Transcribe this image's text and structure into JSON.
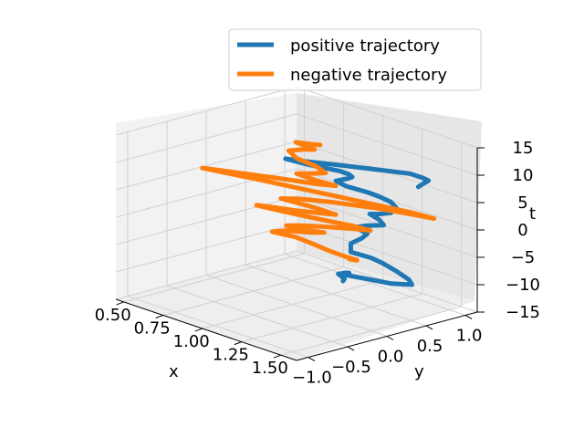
{
  "chart_data": {
    "type": "line3d",
    "title": "",
    "x_label": "x",
    "y_label": "y",
    "z_label": "t",
    "x_ticks": [
      "0.50",
      "0.75",
      "1.00",
      "1.25",
      "1.50"
    ],
    "y_ticks": [
      "−1.0",
      "−0.5",
      "0.0",
      "0.5",
      "1.0"
    ],
    "z_ticks": [
      "15",
      "10",
      "5",
      "0",
      "−5",
      "−10",
      "−15"
    ],
    "xlim": [
      0.45,
      1.6
    ],
    "ylim": [
      -1.15,
      1.15
    ],
    "zlim": [
      -15,
      15
    ],
    "grid": true,
    "legend": {
      "position": "top-right",
      "entries": [
        "positive trajectory",
        "negative trajectory"
      ]
    },
    "series": [
      {
        "name": "positive trajectory",
        "color": "#1f77b4",
        "points": [
          [
            1.5,
            0.6,
            9.0
          ],
          [
            1.55,
            0.58,
            10.3
          ],
          [
            1.59,
            0.55,
            11.2
          ],
          [
            1.58,
            0.5,
            11.8
          ],
          [
            1.52,
            0.45,
            12.2
          ],
          [
            1.4,
            0.3,
            12.3
          ],
          [
            1.22,
            0.15,
            12.0
          ],
          [
            1.05,
            0.0,
            11.7
          ],
          [
            0.98,
            -0.05,
            11.6
          ],
          [
            1.1,
            0.0,
            11.5
          ],
          [
            1.25,
            0.1,
            11.4
          ],
          [
            1.3,
            0.12,
            11.2
          ],
          [
            1.32,
            0.12,
            10.9
          ],
          [
            1.3,
            0.1,
            10.5
          ],
          [
            1.25,
            0.05,
            9.8
          ],
          [
            1.3,
            0.08,
            9.2
          ],
          [
            1.4,
            0.15,
            8.8
          ],
          [
            1.45,
            0.2,
            8.3
          ],
          [
            1.5,
            0.25,
            7.6
          ],
          [
            1.52,
            0.28,
            6.6
          ],
          [
            1.5,
            0.25,
            5.6
          ],
          [
            1.45,
            0.2,
            5.1
          ],
          [
            1.4,
            0.18,
            4.7
          ],
          [
            1.45,
            0.2,
            4.1
          ],
          [
            1.47,
            0.22,
            3.2
          ],
          [
            1.4,
            0.15,
            2.7
          ],
          [
            1.35,
            0.1,
            2.1
          ],
          [
            1.4,
            0.15,
            1.2
          ],
          [
            1.38,
            0.12,
            0.3
          ],
          [
            1.33,
            0.08,
            -1.0
          ],
          [
            1.32,
            0.1,
            -2.7
          ],
          [
            1.4,
            0.2,
            -3.4
          ],
          [
            1.45,
            0.25,
            -4.1
          ],
          [
            1.5,
            0.32,
            -5.3
          ],
          [
            1.55,
            0.38,
            -6.6
          ],
          [
            1.56,
            0.4,
            -7.5
          ],
          [
            1.48,
            0.3,
            -7.7
          ],
          [
            1.35,
            0.2,
            -7.6
          ],
          [
            1.25,
            0.1,
            -7.4
          ],
          [
            1.28,
            0.1,
            -6.9
          ],
          [
            1.3,
            0.12,
            -6.8
          ],
          [
            1.25,
            0.08,
            -7.3
          ],
          [
            1.28,
            0.1,
            -8.0
          ],
          [
            1.27,
            0.1,
            -8.5
          ]
        ]
      },
      {
        "name": "negative trajectory",
        "color": "#ff7f0e",
        "points": [
          [
            1.05,
            0.62,
            -8.6
          ],
          [
            1.1,
            0.6,
            -8.3
          ],
          [
            1.12,
            0.58,
            -8.0
          ],
          [
            1.06,
            0.55,
            -7.8
          ],
          [
            0.98,
            0.5,
            -7.3
          ],
          [
            0.9,
            0.45,
            -6.6
          ],
          [
            0.82,
            0.4,
            -6.0
          ],
          [
            0.72,
            0.3,
            -5.6
          ],
          [
            0.78,
            0.35,
            -5.0
          ],
          [
            0.9,
            0.45,
            -4.6
          ],
          [
            0.95,
            0.5,
            -4.3
          ],
          [
            0.88,
            0.4,
            -4.1
          ],
          [
            0.8,
            0.32,
            -3.8
          ],
          [
            0.85,
            0.35,
            -3.4
          ],
          [
            0.92,
            0.4,
            -3.0
          ],
          [
            1.0,
            0.45,
            -2.6
          ],
          [
            1.12,
            0.52,
            -2.0
          ],
          [
            1.22,
            0.55,
            -1.5
          ],
          [
            1.15,
            0.45,
            -0.9
          ],
          [
            1.0,
            0.32,
            -0.6
          ],
          [
            0.85,
            0.2,
            -0.3
          ],
          [
            0.72,
            0.1,
            0.0
          ],
          [
            0.78,
            0.12,
            0.3
          ],
          [
            0.92,
            0.2,
            0.6
          ],
          [
            1.1,
            0.35,
            1.0
          ],
          [
            1.0,
            0.28,
            1.6
          ],
          [
            0.85,
            0.15,
            2.3
          ],
          [
            0.95,
            0.2,
            3.0
          ],
          [
            1.1,
            0.3,
            3.5
          ],
          [
            1.3,
            0.45,
            3.8
          ],
          [
            1.48,
            0.55,
            4.0
          ],
          [
            1.6,
            0.6,
            4.2
          ],
          [
            1.5,
            0.52,
            4.6
          ],
          [
            1.3,
            0.35,
            5.1
          ],
          [
            1.05,
            0.15,
            5.6
          ],
          [
            0.8,
            -0.05,
            6.1
          ],
          [
            0.62,
            -0.2,
            6.4
          ],
          [
            0.55,
            -0.25,
            6.5
          ],
          [
            0.7,
            -0.15,
            6.8
          ],
          [
            0.9,
            0.0,
            7.1
          ],
          [
            1.1,
            0.1,
            7.6
          ],
          [
            1.2,
            0.15,
            8.0
          ],
          [
            1.1,
            0.08,
            8.4
          ],
          [
            1.0,
            0.05,
            8.7
          ],
          [
            1.08,
            0.1,
            9.3
          ],
          [
            1.15,
            0.12,
            10.0
          ],
          [
            1.1,
            0.1,
            10.8
          ],
          [
            1.0,
            0.05,
            11.5
          ],
          [
            0.95,
            0.05,
            12.4
          ],
          [
            1.02,
            0.1,
            13.1
          ],
          [
            1.08,
            0.12,
            13.6
          ],
          [
            1.05,
            0.1,
            13.9
          ],
          [
            0.98,
            0.08,
            14.1
          ],
          [
            1.05,
            0.12,
            14.3
          ],
          [
            1.1,
            0.15,
            14.5
          ]
        ]
      }
    ]
  }
}
